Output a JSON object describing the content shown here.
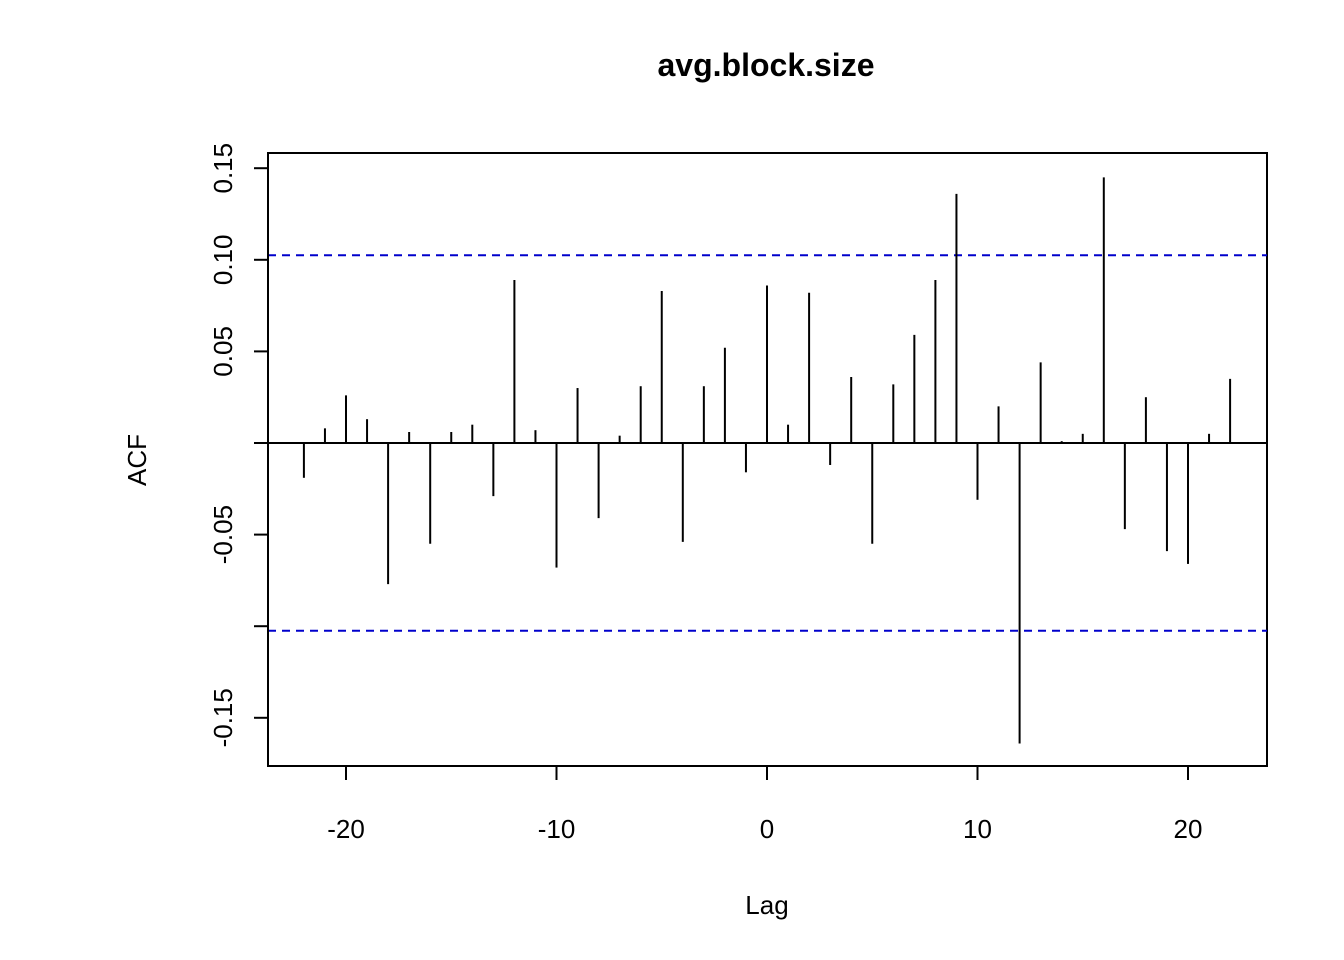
{
  "chart_data": {
    "type": "bar",
    "title": "avg.block.size",
    "xlabel": "Lag",
    "ylabel": "ACF",
    "xlim": [
      -24,
      24
    ],
    "ylim": [
      -0.175,
      0.16
    ],
    "xticks": [
      -20,
      -10,
      0,
      10,
      20
    ],
    "xtick_labels": [
      "-20",
      "-10",
      "0",
      "10",
      "20"
    ],
    "yticks": [
      -0.15,
      -0.1,
      -0.05,
      0,
      0.05,
      0.1,
      0.15
    ],
    "ytick_labels": [
      "-0.15",
      "",
      "-0.05",
      "",
      "0.05",
      "0.10",
      "0.15"
    ],
    "confidence_limit": 0.1025,
    "confidence_color": "#0000cc",
    "bar_color": "#000000",
    "grid": false,
    "lags": [
      -22,
      -21,
      -20,
      -19,
      -18,
      -17,
      -16,
      -15,
      -14,
      -13,
      -12,
      -11,
      -10,
      -9,
      -8,
      -7,
      -6,
      -5,
      -4,
      -3,
      -2,
      -1,
      0,
      1,
      2,
      3,
      4,
      5,
      6,
      7,
      8,
      9,
      10,
      11,
      12,
      13,
      14,
      15,
      16,
      17,
      18,
      19,
      20,
      21,
      22
    ],
    "values": [
      -0.019,
      0.008,
      0.026,
      0.013,
      -0.077,
      0.006,
      -0.055,
      0.006,
      0.01,
      -0.029,
      0.089,
      0.007,
      -0.068,
      0.03,
      -0.041,
      0.004,
      0.031,
      0.083,
      -0.054,
      0.031,
      0.052,
      -0.016,
      0.086,
      0.01,
      0.082,
      -0.012,
      0.036,
      -0.055,
      0.032,
      0.059,
      0.089,
      0.136,
      -0.031,
      0.02,
      -0.164,
      0.044,
      0.001,
      0.005,
      0.145,
      -0.047,
      0.025,
      -0.059,
      -0.066,
      0.005,
      0.035
    ]
  }
}
